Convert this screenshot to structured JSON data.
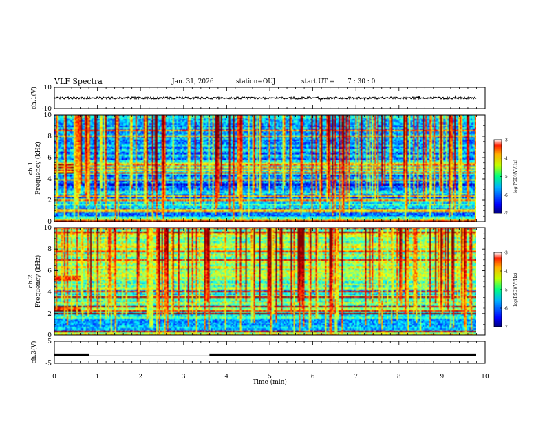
{
  "header": {
    "title": "VLF Spectra",
    "date": "Jan. 31, 2026",
    "station": "station=OUJ",
    "start_label": "start UT =",
    "start_value": "7 : 30 : 0"
  },
  "chart_data": [
    {
      "type": "line",
      "id": "ch1-waveform",
      "ylabel": "ch.1(V)",
      "ylim": [
        -10,
        10
      ],
      "yticks": [
        "10",
        "-10"
      ],
      "xlim": [
        0,
        10
      ],
      "description_values": {
        "baseline": 0,
        "noise_amplitude": 1
      }
    },
    {
      "type": "heatmap",
      "id": "ch1-spectrogram",
      "ylabel": "ch.1",
      "ylabel2": "Frequency (kHz)",
      "ylim": [
        0,
        10
      ],
      "yticks": [
        "0",
        "2",
        "4",
        "6",
        "8",
        "10"
      ],
      "xlim": [
        0,
        10
      ],
      "colorbar": {
        "label": "log(PSD)(V²/Hz)",
        "range": [
          -7,
          -3
        ],
        "ticks": [
          "-3",
          "-4",
          "-5",
          "-6",
          "-7"
        ]
      }
    },
    {
      "type": "heatmap",
      "id": "ch2-spectrogram",
      "ylabel": "ch.2",
      "ylabel2": "Frequency (kHz)",
      "ylim": [
        0,
        10
      ],
      "yticks": [
        "0",
        "2",
        "4",
        "6",
        "8",
        "10"
      ],
      "xlim": [
        0,
        10
      ],
      "colorbar": {
        "label": "log(PSD)(V²/Hz)",
        "range": [
          -7,
          -3
        ],
        "ticks": [
          "-3",
          "-4",
          "-5",
          "-6",
          "-7"
        ]
      }
    },
    {
      "type": "line",
      "id": "ch3-waveform",
      "ylabel": "ch.3(V)",
      "ylim": [
        -5,
        5
      ],
      "yticks": [
        "5",
        "-5"
      ],
      "xlim": [
        0,
        10
      ],
      "xlabel": "Time (min)",
      "xticks": [
        "0",
        "1",
        "2",
        "3",
        "4",
        "5",
        "6",
        "7",
        "8",
        "9",
        "10"
      ],
      "segments": [
        {
          "t_start": 0.0,
          "t_end": 0.8,
          "value": -1.2
        },
        {
          "t_start": 3.6,
          "t_end": 9.8,
          "value": -1.2
        }
      ],
      "connector": {
        "t_start": 0.8,
        "t_end": 3.6,
        "value": -1.2
      }
    }
  ]
}
